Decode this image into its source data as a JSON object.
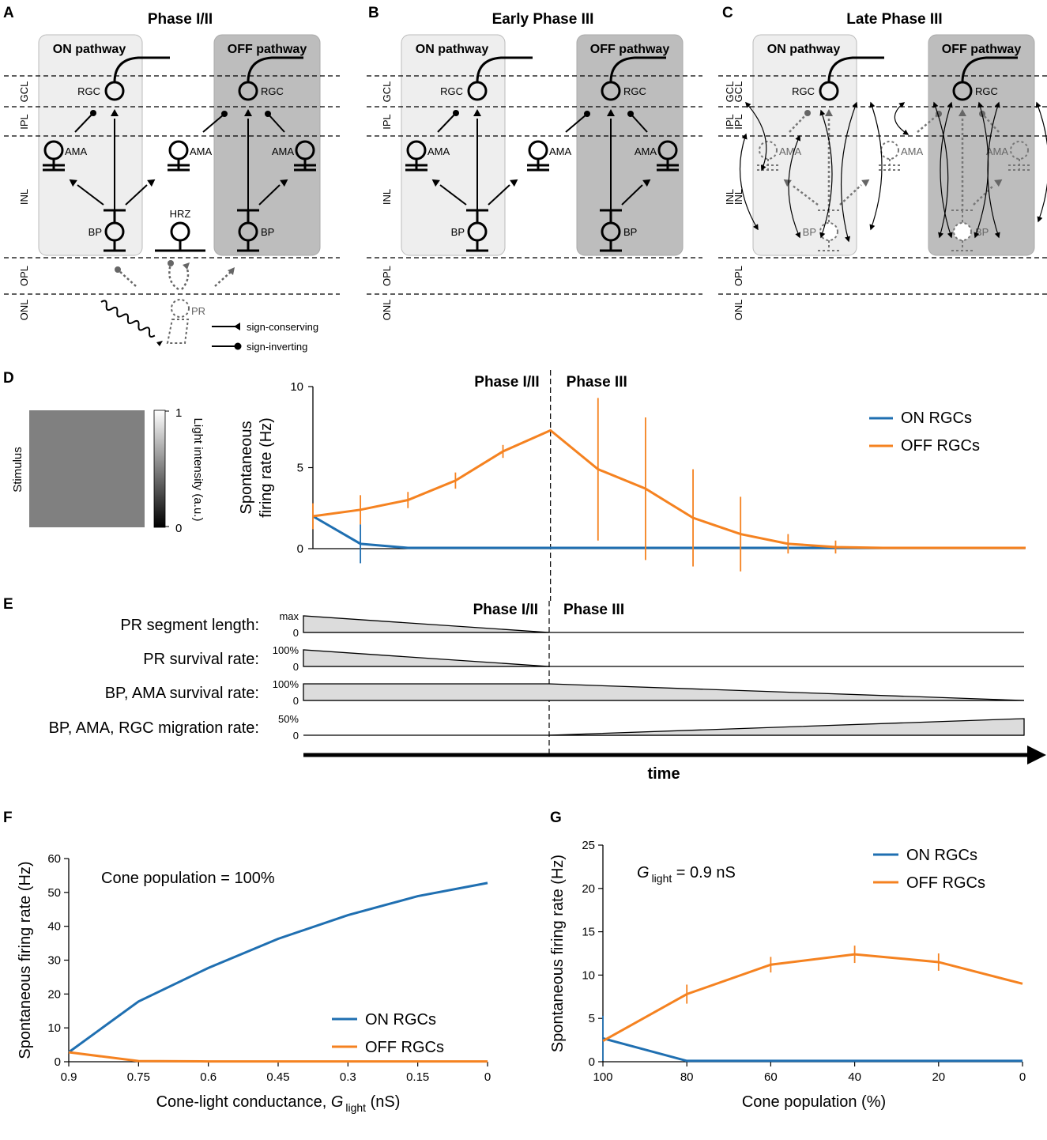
{
  "panel_letters": {
    "a": "A",
    "b": "B",
    "c": "C",
    "d": "D",
    "e": "E",
    "f": "F",
    "g": "G"
  },
  "diagram": {
    "panel_a_title": "Phase I/II",
    "panel_b_title": "Early Phase III",
    "panel_c_title": "Late Phase III",
    "on_pathway": "ON pathway",
    "off_pathway": "OFF pathway",
    "layers": {
      "gcl": "GCL",
      "ipl": "IPL",
      "inl": "INL",
      "opl": "OPL",
      "onl": "ONL"
    },
    "cells": {
      "rgc": "RGC",
      "ama": "AMA",
      "bp": "BP",
      "hrz": "HRZ",
      "pr": "PR"
    },
    "legend": {
      "conserving": "sign-conserving",
      "inverting": "sign-inverting"
    }
  },
  "stimulus": {
    "label": "Stimulus",
    "colorbar_label": "Light intensity (a.u.)",
    "cb_max": "1",
    "cb_min": "0",
    "gray": "#808080"
  },
  "colors": {
    "on": "#1f6fb1",
    "off": "#f58220",
    "panel_on": "#eeeeee",
    "panel_off": "#bdbdbd",
    "ramp_fill": "#dcdcdc"
  },
  "charts": [
    {
      "id": "D",
      "type": "line",
      "ylabel": "Spontaneous firing rate (Hz)",
      "ylabel_lines": [
        "Spontaneous",
        "firing rate (Hz)"
      ],
      "xlim": [
        0,
        15
      ],
      "ylim": [
        0,
        10
      ],
      "yticks": [
        "0",
        "5",
        "10"
      ],
      "divider_x": 5,
      "phase_labels": [
        "Phase I/II",
        "Phase III"
      ],
      "series": [
        {
          "name": "ON RGCs",
          "color": "#1f6fb1",
          "x": [
            0,
            1,
            2,
            3,
            4,
            5,
            6,
            7,
            8,
            9,
            10,
            11,
            12,
            13,
            14,
            15
          ],
          "y": [
            2.0,
            0.3,
            0.05,
            0.05,
            0.05,
            0.05,
            0.05,
            0.05,
            0.05,
            0.05,
            0.05,
            0.05,
            0.05,
            0.05,
            0.05,
            0.05
          ],
          "err": [
            0,
            1.2,
            0,
            0,
            0,
            0,
            0,
            0,
            0,
            0,
            0,
            0,
            0,
            0,
            0,
            0
          ]
        },
        {
          "name": "OFF RGCs",
          "color": "#f58220",
          "x": [
            0,
            1,
            2,
            3,
            4,
            5,
            6,
            7,
            8,
            9,
            10,
            11,
            12,
            13,
            14,
            15
          ],
          "y": [
            2.0,
            2.4,
            3.0,
            4.2,
            6.0,
            7.3,
            4.9,
            3.7,
            1.9,
            0.9,
            0.3,
            0.1,
            0.05,
            0.05,
            0.05,
            0.05
          ],
          "err": [
            0.8,
            0.9,
            0.5,
            0.5,
            0.4,
            0,
            4.4,
            4.4,
            3.0,
            2.3,
            0.6,
            0.4,
            0,
            0,
            0,
            0
          ]
        }
      ],
      "legend": [
        "ON RGCs",
        "OFF RGCs"
      ]
    },
    {
      "id": "F",
      "type": "line",
      "title": "Cone population = 100%",
      "xlabel_main": "Cone-light conductance, ",
      "xlabel_g": "G",
      "xlabel_sub": "light",
      "xlabel_unit": " (nS)",
      "ylabel": "Spontaneous firing rate (Hz)",
      "xticks": [
        "0.9",
        "0.75",
        "0.6",
        "0.45",
        "0.3",
        "0.15",
        "0"
      ],
      "yticks": [
        "0",
        "10",
        "20",
        "30",
        "40",
        "50",
        "60"
      ],
      "ylim": [
        0,
        60
      ],
      "series": [
        {
          "name": "ON RGCs",
          "color": "#1f6fb1",
          "x": [
            0.9,
            0.75,
            0.6,
            0.45,
            0.3,
            0.15,
            0
          ],
          "y": [
            2.8,
            17.8,
            27.7,
            36.3,
            43.3,
            48.9,
            52.8
          ]
        },
        {
          "name": "OFF RGCs",
          "color": "#f58220",
          "x": [
            0.9,
            0.75,
            0.6,
            0.45,
            0.3,
            0.15,
            0
          ],
          "y": [
            2.8,
            0.2,
            0.1,
            0.1,
            0.1,
            0.1,
            0.1
          ]
        }
      ],
      "legend": [
        "ON RGCs",
        "OFF RGCs"
      ]
    },
    {
      "id": "G",
      "type": "line",
      "title_g": "G",
      "title_sub": "light",
      "title_rest": " = 0.9 nS",
      "xlabel": "Cone population (%)",
      "ylabel": "Spontaneous firing rate (Hz)",
      "xticks": [
        "100",
        "80",
        "60",
        "40",
        "20",
        "0"
      ],
      "yticks": [
        "0",
        "5",
        "10",
        "15",
        "20",
        "25"
      ],
      "ylim": [
        0,
        25
      ],
      "series": [
        {
          "name": "ON RGCs",
          "color": "#1f6fb1",
          "x": [
            100,
            80,
            60,
            40,
            20,
            0
          ],
          "y": [
            2.7,
            0.1,
            0.1,
            0.1,
            0.1,
            0.1
          ],
          "err": [
            2.6,
            0,
            0,
            0,
            0,
            0
          ]
        },
        {
          "name": "OFF RGCs",
          "color": "#f58220",
          "x": [
            100,
            80,
            60,
            40,
            20,
            0
          ],
          "y": [
            2.4,
            7.8,
            11.2,
            12.4,
            11.5,
            9.0
          ],
          "err": [
            0,
            1.1,
            0.9,
            1.0,
            1.0,
            0
          ]
        }
      ],
      "legend": [
        "ON RGCs",
        "OFF RGCs"
      ]
    }
  ],
  "timeline": {
    "phase_labels": [
      "Phase I/II",
      "Phase III"
    ],
    "axis_label": "time",
    "rows": [
      {
        "label": "PR segment length:",
        "max": "max",
        "zero": "0",
        "shape": "down_phase1"
      },
      {
        "label": "PR survival rate:",
        "max": "100%",
        "zero": "0",
        "shape": "down_phase1"
      },
      {
        "label": "BP, AMA survival rate:",
        "max": "100%",
        "zero": "0",
        "shape": "down_phase3"
      },
      {
        "label": "BP, AMA, RGC migration rate:",
        "max": "50%",
        "zero": "0",
        "shape": "up_phase3"
      }
    ]
  }
}
